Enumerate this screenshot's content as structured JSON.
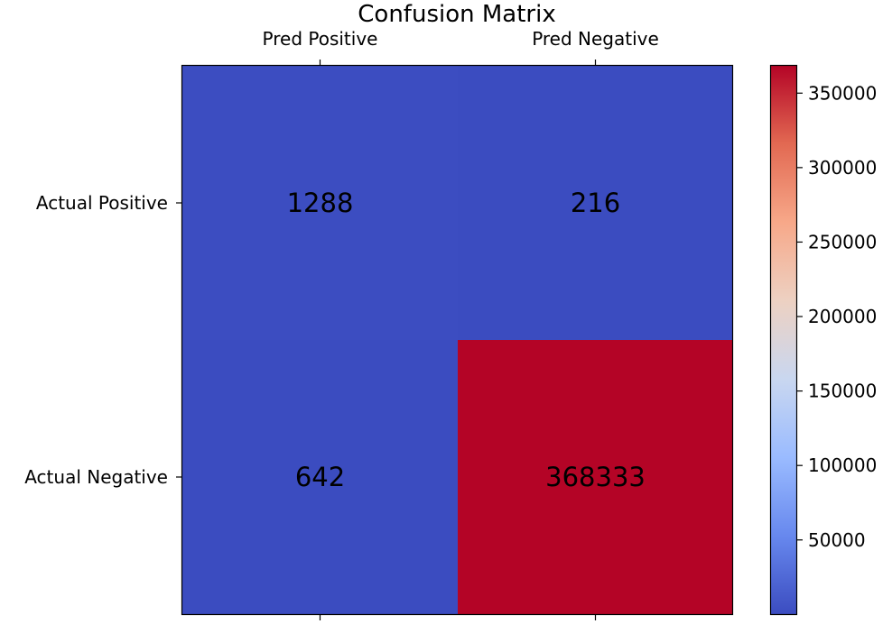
{
  "chart_data": {
    "type": "heatmap",
    "title": "Confusion Matrix",
    "x_labels": [
      "Pred Positive",
      "Pred Negative"
    ],
    "y_labels": [
      "Actual Positive",
      "Actual Negative"
    ],
    "values": [
      [
        1288,
        216
      ],
      [
        642,
        368333
      ]
    ],
    "value_labels": [
      [
        "1288",
        "216"
      ],
      [
        "642",
        "368333"
      ]
    ],
    "colormap": "coolwarm",
    "x_tick_position": "top",
    "grid": false,
    "colorbar": {
      "position": "right",
      "range": [
        216,
        368333
      ],
      "ticks": [
        50000,
        100000,
        150000,
        200000,
        250000,
        300000,
        350000
      ],
      "tick_labels": [
        "50000",
        "100000",
        "150000",
        "200000",
        "250000",
        "300000",
        "350000"
      ],
      "colors": [
        "#3b4cc0",
        "#6788ee",
        "#9abbff",
        "#c9d7f0",
        "#edd1c2",
        "#f7a889",
        "#e26952",
        "#b40426"
      ]
    }
  }
}
